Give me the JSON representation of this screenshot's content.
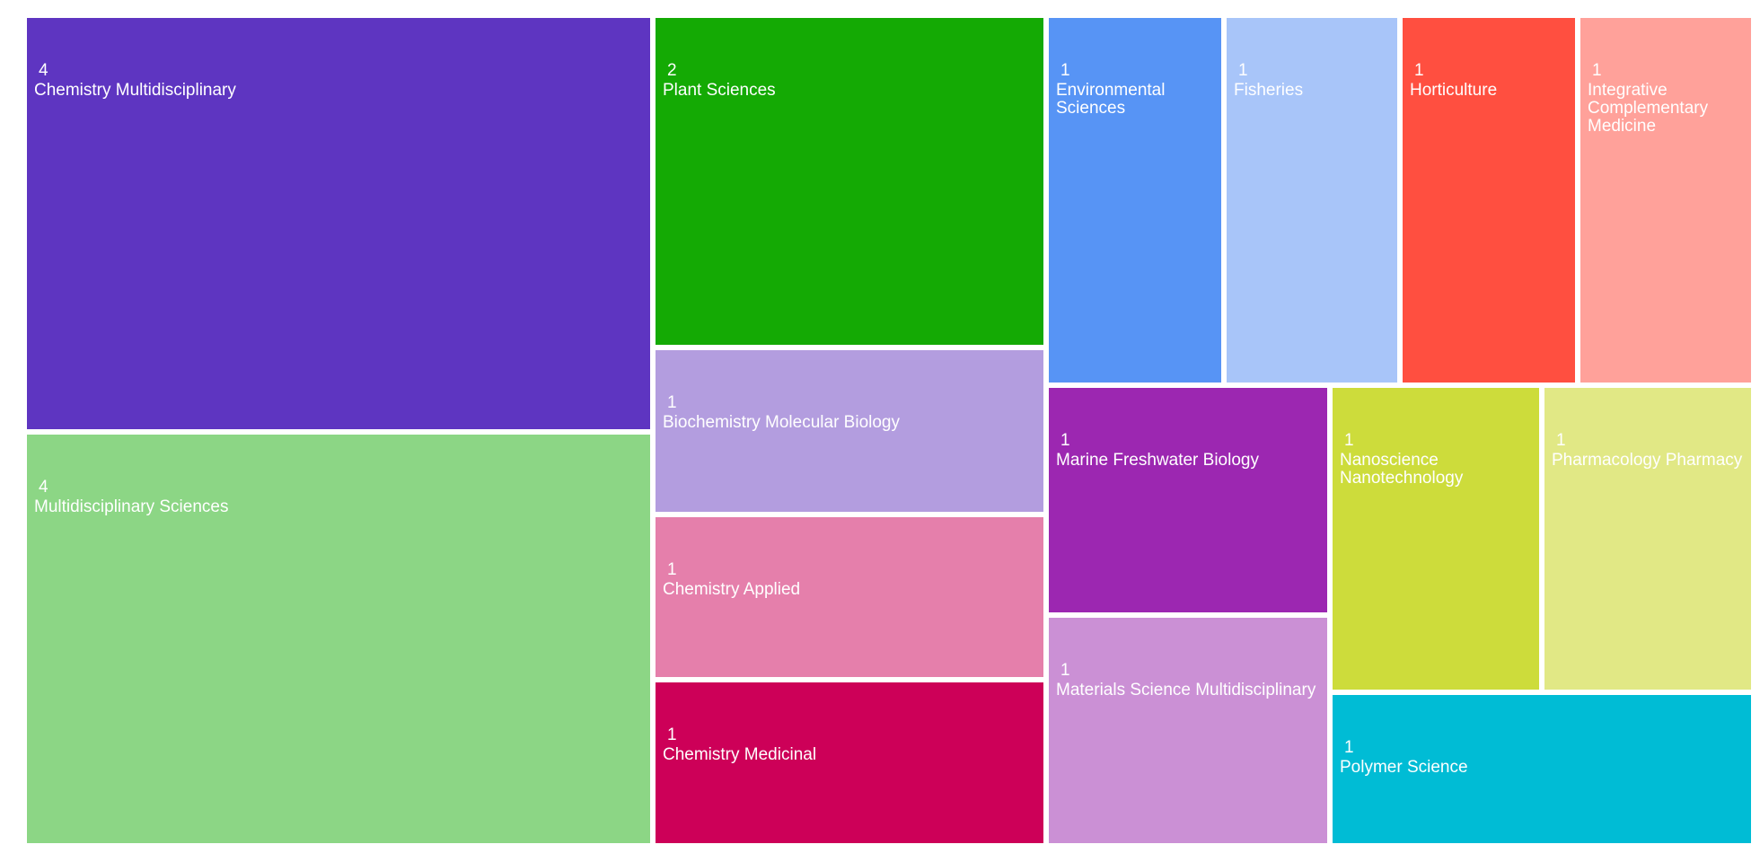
{
  "chart_data": {
    "type": "treemap",
    "title": "",
    "items": [
      {
        "label": "Chemistry Multidisciplinary",
        "value": 4,
        "color": "#5e35c1"
      },
      {
        "label": "Multidisciplinary Sciences",
        "value": 4,
        "color": "#8cd685"
      },
      {
        "label": "Plant Sciences",
        "value": 2,
        "color": "#14aa04"
      },
      {
        "label": "Biochemistry Molecular Biology",
        "value": 1,
        "color": "#b39ddf"
      },
      {
        "label": "Chemistry Applied",
        "value": 1,
        "color": "#e57fab"
      },
      {
        "label": "Chemistry Medicinal",
        "value": 1,
        "color": "#cd0058"
      },
      {
        "label": "Environmental Sciences",
        "value": 1,
        "color": "#5794f5"
      },
      {
        "label": "Fisheries",
        "value": 1,
        "color": "#a8c5f9"
      },
      {
        "label": "Horticulture",
        "value": 1,
        "color": "#ff4f40"
      },
      {
        "label": "Integrative Complementary Medicine",
        "value": 1,
        "color": "#ffa19a"
      },
      {
        "label": "Marine Freshwater Biology",
        "value": 1,
        "color": "#9c27b1"
      },
      {
        "label": "Materials Science Multidisciplinary",
        "value": 1,
        "color": "#cb90d5"
      },
      {
        "label": "Nanoscience Nanotechnology",
        "value": 1,
        "color": "#cddc3b"
      },
      {
        "label": "Pharmacology Pharmacy",
        "value": 1,
        "color": "#e1e885"
      },
      {
        "label": "Polymer Science",
        "value": 1,
        "color": "#00bcd5"
      }
    ]
  }
}
